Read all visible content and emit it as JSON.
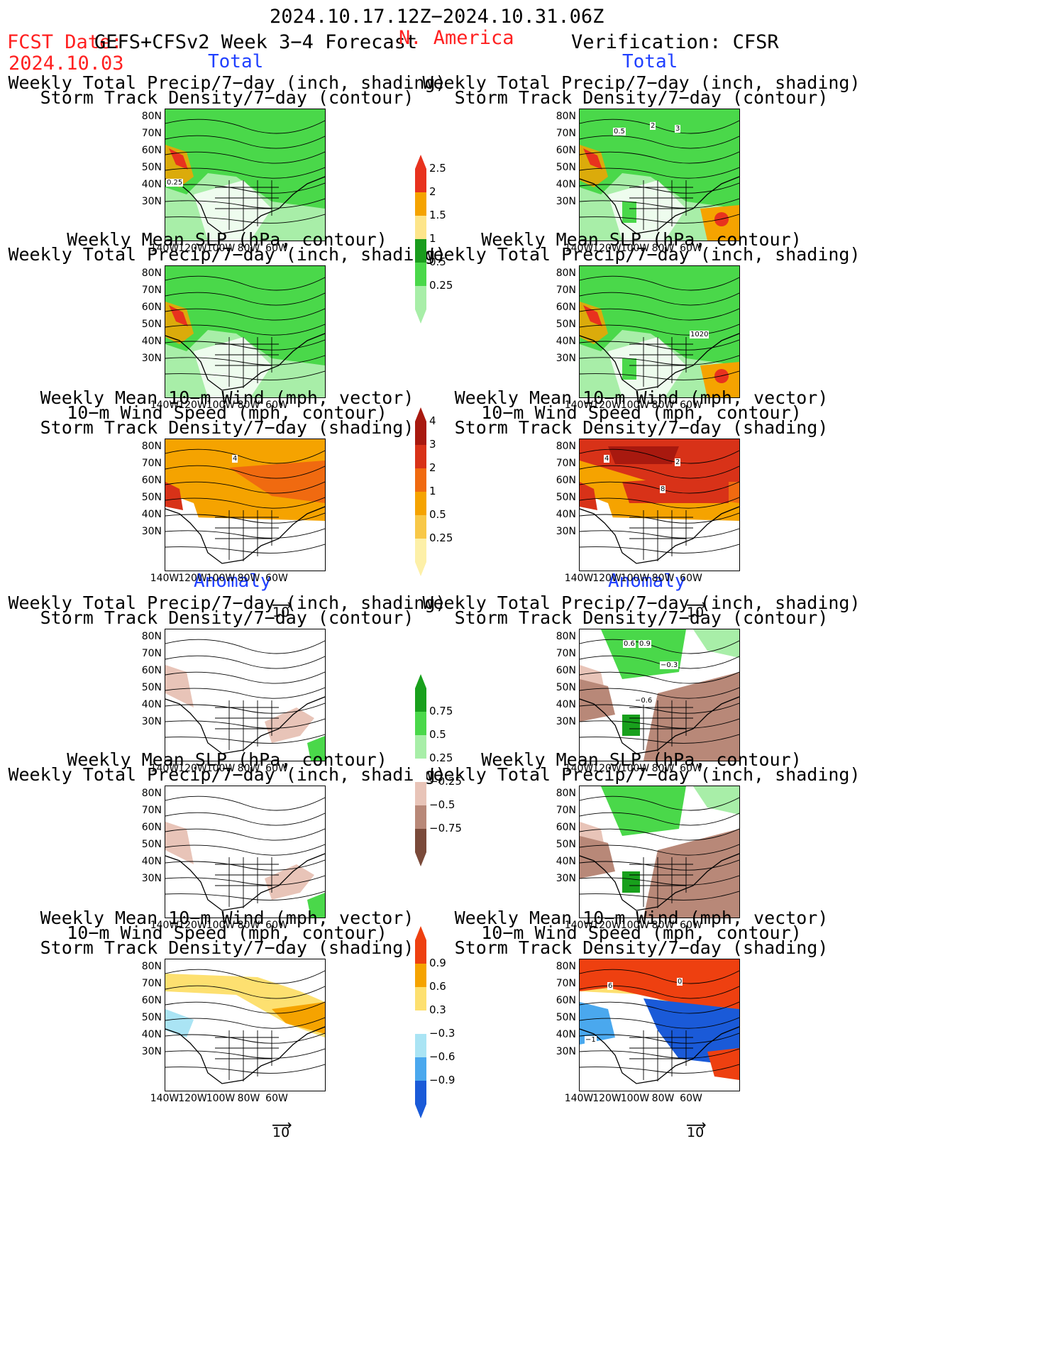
{
  "header": {
    "period": "2024.10.17.12Z−2024.10.31.06Z",
    "fcst_label": "FCST Date:",
    "fcst_date": "2024.10.03",
    "model": "GEFS+CFSv2 Week 3−4 Forecast",
    "region": "N. America",
    "verification": "Verification: CFSR"
  },
  "section_labels": {
    "total": "Total",
    "anomaly": "Anomaly"
  },
  "titles": {
    "precip_storm": [
      "Weekly Total Precip/7−day (inch, shading)",
      "Storm Track Density/7−day (contour)"
    ],
    "slp_precip": [
      "Weekly Mean SLP (hPa, contour)",
      "Weekly Total Precip/7−day (inch, shading)"
    ],
    "wind_storm": [
      "Weekly Mean 10−m Wind (mph, vector)",
      "10−m Wind Speed (mph, contour)",
      "Storm Track Density/7−day (shading)"
    ]
  },
  "axes": {
    "lat": [
      "80N",
      "70N",
      "60N",
      "50N",
      "40N",
      "30N"
    ],
    "lon": [
      "140W",
      "120W",
      "100W",
      "80W",
      "60W"
    ]
  },
  "vector_ref": "10",
  "colorbars": {
    "precip_total": {
      "labels": [
        "2.5",
        "2",
        "1.5",
        "1",
        "0.5",
        "0.25"
      ],
      "colors": [
        "#e8321e",
        "#f5a300",
        "#fde58a",
        "#199c1c",
        "#4ad84a",
        "#a8eea8"
      ]
    },
    "storm_total": {
      "labels": [
        "4",
        "3",
        "2",
        "1",
        "0.5",
        "0.25"
      ],
      "colors": [
        "#a8190f",
        "#d83218",
        "#f06a10",
        "#f5a300",
        "#f8c848",
        "#fdf0a8"
      ]
    },
    "precip_anom": {
      "labels": [
        "0.75",
        "0.5",
        "0.25",
        "−0.25",
        "−0.5",
        "−0.75"
      ],
      "colors": [
        "#18a01c",
        "#4ad84a",
        "#a8eea8",
        "#ffffff",
        "#e8c4b8",
        "#b88878",
        "#7a4a3a"
      ]
    },
    "storm_anom": {
      "labels": [
        "0.9",
        "0.6",
        "0.3",
        "−0.3",
        "−0.6",
        "−0.9"
      ],
      "colors": [
        "#ee4010",
        "#f5a300",
        "#fde070",
        "#ffffff",
        "#aae4f4",
        "#4aa8ee",
        "#1a5ad8"
      ]
    }
  },
  "map_labels": {
    "a": "0.25",
    "b1": "0.5",
    "b2": "2",
    "b3": "3",
    "c": "1020",
    "d": "4",
    "e1": "4",
    "e2": "2",
    "e3": "8",
    "f1": "0.6",
    "f2": "0.9",
    "f3": "−0.3",
    "f4": "−0.6",
    "g1": "6",
    "g2": "0",
    "g3": "−1"
  },
  "colors": {
    "red": "#ff2020",
    "blue": "#2040ff"
  }
}
